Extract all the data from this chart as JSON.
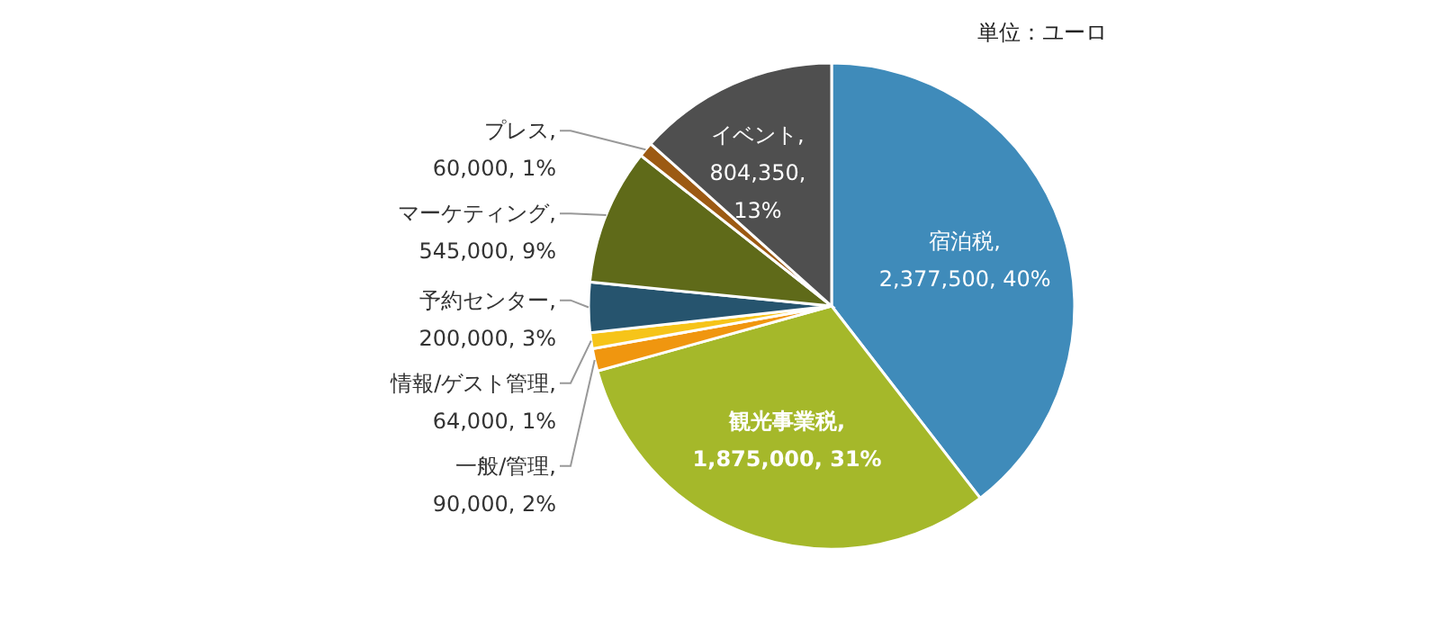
{
  "chart_data": {
    "type": "pie",
    "categories": [
      "宿泊税",
      "観光事業税",
      "一般/管理",
      "情報/ゲスト管理",
      "予約センター",
      "マーケティング",
      "プレス",
      "イベント"
    ],
    "values": [
      2377500,
      1875000,
      90000,
      64000,
      200000,
      545000,
      60000,
      804350
    ],
    "value_labels": [
      ", 2,377,500, 40%",
      ", 1,875,000, 31%",
      ", 90,000, 2%",
      ", 64,000, 1%",
      ", 200,000, 3%",
      ", 545,000, 9%",
      ", 60,000, 1%",
      ", 804,350, 13%"
    ],
    "colors": [
      "#3f8bba",
      "#a5b82a",
      "#f0960f",
      "#f6c419",
      "#26546e",
      "#5f6a19",
      "#9c5a13",
      "#4f4f4f"
    ],
    "annotations": [
      "単位：ユーロ"
    ],
    "legend": false
  }
}
